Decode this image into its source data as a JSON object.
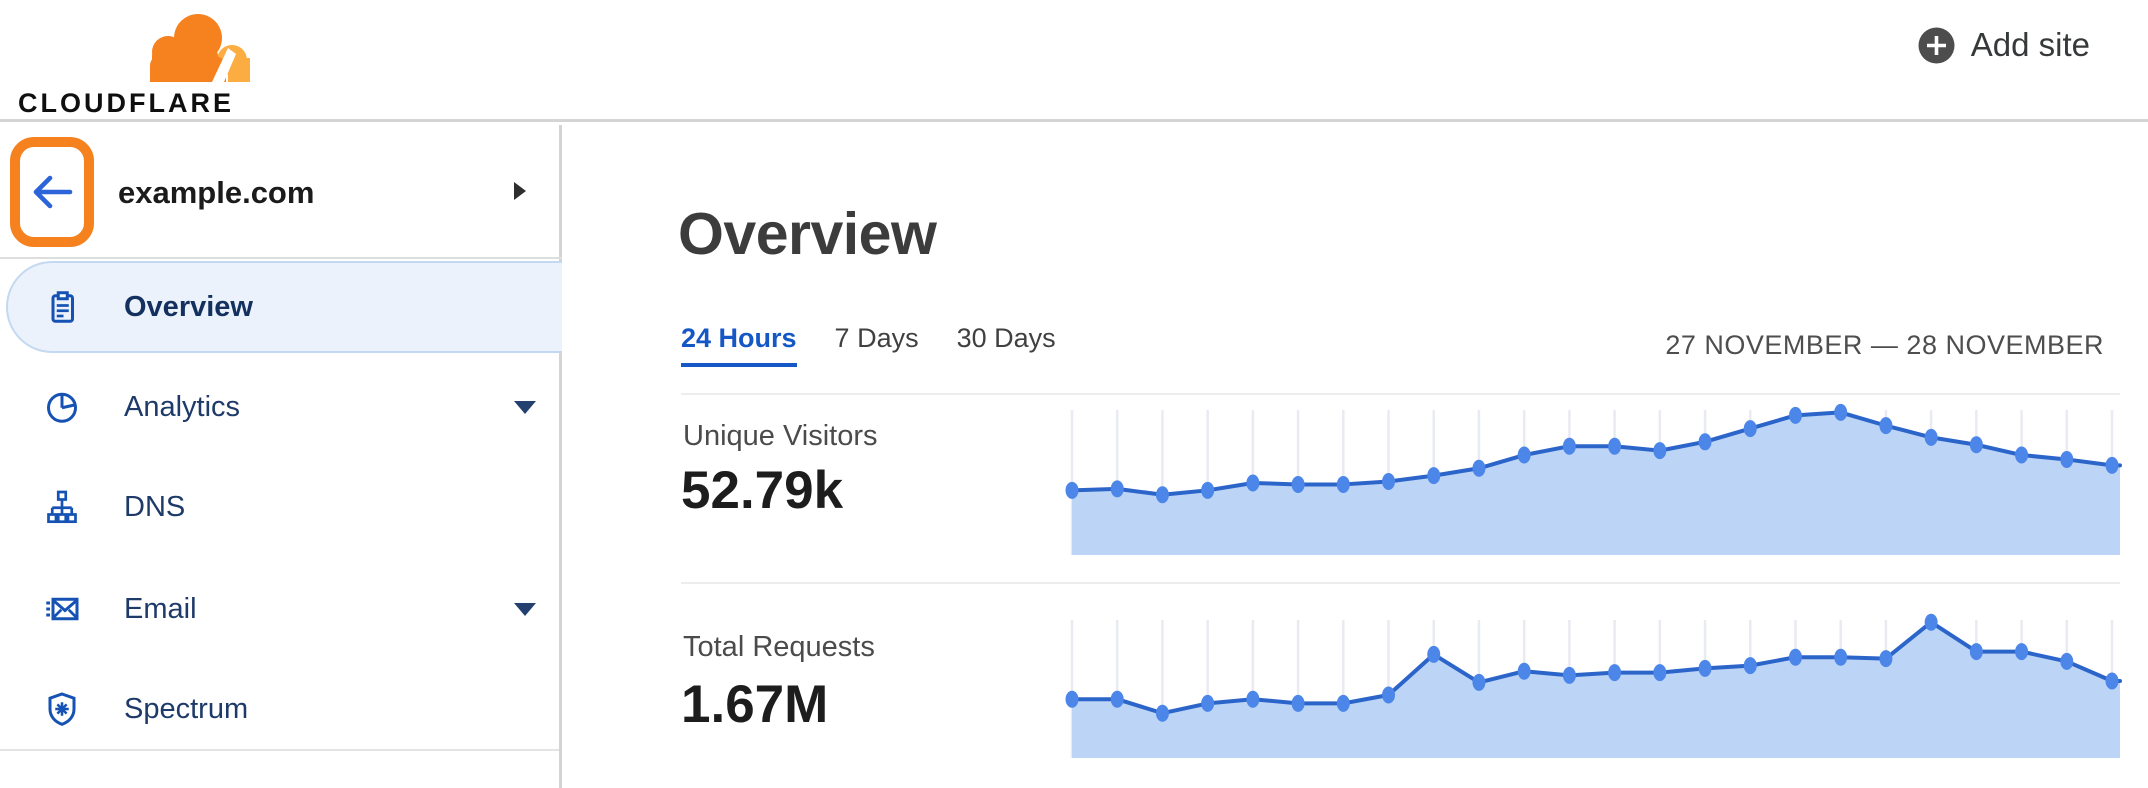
{
  "header": {
    "logo_text": "CLOUDFLARE",
    "add_site_label": "Add site"
  },
  "sidebar": {
    "site": {
      "name": "example.com"
    },
    "items": [
      {
        "label": "Overview",
        "icon": "clipboard-icon",
        "selected": true,
        "caret": false
      },
      {
        "label": "Analytics",
        "icon": "pie-chart-icon",
        "selected": false,
        "caret": true
      },
      {
        "label": "DNS",
        "icon": "dns-tree-icon",
        "selected": false,
        "caret": false
      },
      {
        "label": "Email",
        "icon": "email-icon",
        "selected": false,
        "caret": true
      },
      {
        "label": "Spectrum",
        "icon": "shield-icon",
        "selected": false,
        "caret": false
      }
    ]
  },
  "main": {
    "title": "Overview",
    "tabs": [
      {
        "label": "24 Hours",
        "active": true
      },
      {
        "label": "7 Days",
        "active": false
      },
      {
        "label": "30 Days",
        "active": false
      }
    ],
    "date_range": "27 NOVEMBER — 28 NOVEMBER"
  },
  "chart_data": [
    {
      "type": "area",
      "title": "Unique Visitors",
      "total": "52.79k",
      "time_range": "24 Hours (27 November — 28 November)",
      "points": 24,
      "ylabel": "",
      "xlabel": "",
      "axis_labels_shown": false,
      "units": "relative height, % of series peak (no axis ticks shown)",
      "values": [
        44,
        45,
        41,
        44,
        49,
        48,
        48,
        50,
        54,
        59,
        68,
        74,
        74,
        71,
        77,
        86,
        95,
        97,
        88,
        80,
        75,
        68,
        65,
        61
      ]
    },
    {
      "type": "area",
      "title": "Total Requests",
      "total": "1.67M",
      "time_range": "24 Hours (27 November — 28 November)",
      "points": 24,
      "ylabel": "",
      "xlabel": "",
      "axis_labels_shown": false,
      "units": "relative height, % of series peak (no axis ticks shown)",
      "values": [
        42,
        42,
        32,
        39,
        42,
        39,
        39,
        45,
        74,
        54,
        62,
        59,
        61,
        61,
        64,
        66,
        72,
        72,
        71,
        97,
        76,
        76,
        69,
        55
      ]
    }
  ],
  "colors": {
    "brand_orange": "#f6821f",
    "brand_orange_light": "#fbad41",
    "highlight_box": "#f6821f",
    "link_blue": "#1558c5",
    "nav_icon_blue": "#1552b4",
    "nav_text": "#1e3a69",
    "selected_pill_bg": "#ecf2fb",
    "selected_pill_border": "#c3d8f1",
    "chart_line": "#2c65ca",
    "chart_dot": "#4c86e8",
    "chart_fill": "#bcd5f6",
    "chart_gridline": "#e9ebf2",
    "divider": "#ededed",
    "header_border": "#d4d4d4"
  }
}
